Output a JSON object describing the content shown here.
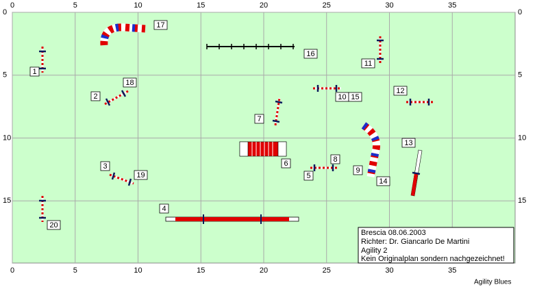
{
  "axes": {
    "xticks": [
      0,
      5,
      10,
      15,
      20,
      25,
      30,
      35
    ],
    "yticks": [
      0,
      5,
      10,
      15
    ]
  },
  "obstacles": [
    {
      "label": "1"
    },
    {
      "label": "2"
    },
    {
      "label": "3"
    },
    {
      "label": "4"
    },
    {
      "label": "5"
    },
    {
      "label": "6"
    },
    {
      "label": "7"
    },
    {
      "label": "8"
    },
    {
      "label": "9"
    },
    {
      "label": "10"
    },
    {
      "label": "15"
    },
    {
      "label": "11"
    },
    {
      "label": "12"
    },
    {
      "label": "13"
    },
    {
      "label": "14"
    },
    {
      "label": "16"
    },
    {
      "label": "17"
    },
    {
      "label": "18"
    },
    {
      "label": "19"
    },
    {
      "label": "20"
    }
  ],
  "info": {
    "lines": [
      "Brescia 08.06.2003",
      "Richter: Dr. Giancarlo De Martini",
      "Agility 2",
      "Kein Originalplan sondern nachgezeichnet!"
    ]
  },
  "footer": "Agility Blues"
}
